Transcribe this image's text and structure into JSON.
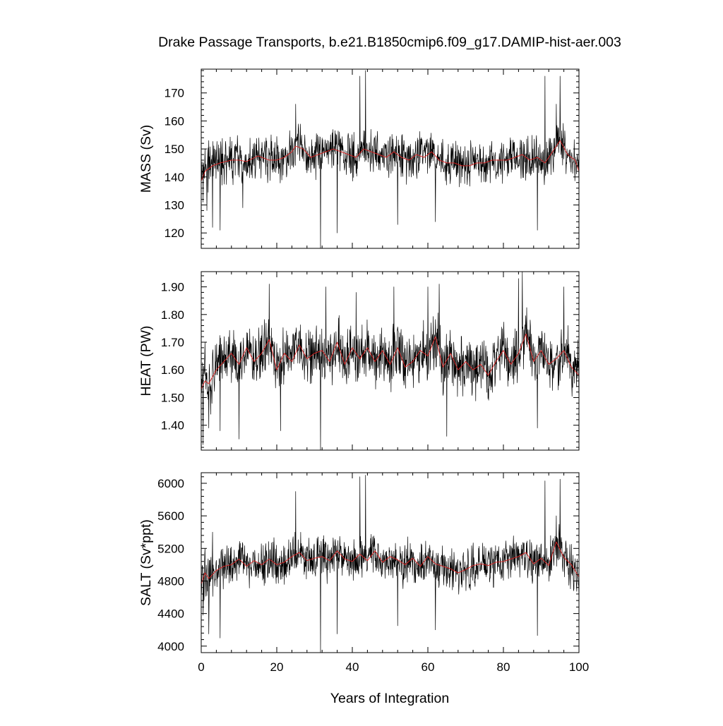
{
  "title": "Drake Passage Transports, b.e21.B1850cmip6.f09_g17.DAMIP-hist-aer.003",
  "xlabel": "Years of Integration",
  "chart_data": [
    {
      "type": "line",
      "ylabel": "MASS (Sv)",
      "xlim": [
        0,
        100
      ],
      "ylim": [
        114.5,
        178.5
      ],
      "yticks": [
        120,
        130,
        140,
        150,
        160,
        170
      ],
      "ytick_labels": [
        "120",
        "130",
        "140",
        "150",
        "160",
        "170"
      ],
      "xticks": [
        0,
        20,
        40,
        60,
        80,
        100
      ],
      "xtick_labels": [],
      "grid": false,
      "series": [
        {
          "key": "monthly",
          "color": "#000000",
          "base": 146,
          "noise": 7.5,
          "x": [
            0,
            0.5,
            1,
            1.5,
            2,
            3,
            5,
            11,
            25,
            31.6,
            36,
            42,
            43.5,
            52,
            62,
            89,
            91,
            94,
            95,
            100
          ],
          "y": [
            143,
            131,
            150,
            128,
            153,
            122,
            121,
            129,
            166,
            114.5,
            120,
            176,
            178,
            123,
            124,
            121,
            176,
            166,
            176,
            135
          ]
        },
        {
          "key": "annual",
          "color": "#e02020",
          "x": [
            0,
            1,
            2,
            3,
            5,
            8,
            10,
            12,
            15,
            18,
            20,
            22,
            24,
            25,
            27,
            29,
            31,
            33,
            35,
            37,
            39,
            41,
            43,
            45,
            47,
            49,
            51,
            53,
            55,
            57,
            59,
            61,
            63,
            65,
            67,
            69,
            71,
            73,
            75,
            77,
            79,
            81,
            83,
            85,
            87,
            89,
            91,
            93,
            95,
            97,
            99,
            100
          ],
          "y": [
            138.5,
            142,
            143,
            144,
            145,
            146,
            146,
            145.5,
            147.5,
            146,
            146,
            147,
            149,
            151,
            150,
            147,
            148,
            149,
            150,
            149,
            148,
            147,
            150,
            149,
            148,
            147,
            149,
            147,
            146,
            148,
            147,
            149,
            146,
            145,
            145,
            144,
            144,
            145,
            145,
            146,
            146,
            146,
            147,
            148,
            146,
            147,
            145,
            149,
            153,
            148,
            146,
            142
          ]
        }
      ]
    },
    {
      "type": "line",
      "ylabel": "HEAT (PW)",
      "xlim": [
        0,
        100
      ],
      "ylim": [
        1.31,
        1.955
      ],
      "yticks": [
        1.4,
        1.5,
        1.6,
        1.7,
        1.8,
        1.9
      ],
      "ytick_labels": [
        "1.40",
        "1.50",
        "1.60",
        "1.70",
        "1.80",
        "1.90"
      ],
      "xticks": [
        0,
        20,
        40,
        60,
        80,
        100
      ],
      "xtick_labels": [],
      "grid": false,
      "series": [
        {
          "key": "monthly",
          "color": "#000000",
          "base": 1.62,
          "noise": 0.1,
          "x": [
            0,
            0.5,
            1,
            2,
            5,
            10,
            18,
            21,
            31.6,
            33,
            41,
            51,
            60,
            63,
            65,
            84,
            85,
            89,
            96,
            100
          ],
          "y": [
            1.52,
            1.33,
            1.7,
            1.39,
            1.38,
            1.35,
            1.91,
            1.38,
            1.31,
            1.9,
            1.88,
            1.9,
            1.9,
            1.91,
            1.36,
            1.93,
            1.955,
            1.39,
            1.9,
            1.45
          ]
        },
        {
          "key": "annual",
          "color": "#e02020",
          "x": [
            0,
            1,
            2,
            4,
            6,
            8,
            10,
            12,
            14,
            16,
            18,
            20,
            22,
            24,
            26,
            28,
            30,
            32,
            34,
            36,
            38,
            40,
            42,
            44,
            46,
            48,
            50,
            52,
            54,
            56,
            58,
            60,
            62,
            64,
            66,
            68,
            70,
            72,
            74,
            76,
            78,
            80,
            82,
            84,
            86,
            88,
            90,
            92,
            94,
            96,
            98,
            100
          ],
          "y": [
            1.53,
            1.56,
            1.55,
            1.6,
            1.63,
            1.66,
            1.62,
            1.68,
            1.63,
            1.66,
            1.71,
            1.6,
            1.66,
            1.63,
            1.69,
            1.64,
            1.66,
            1.67,
            1.63,
            1.7,
            1.62,
            1.68,
            1.64,
            1.68,
            1.63,
            1.67,
            1.62,
            1.68,
            1.61,
            1.63,
            1.67,
            1.65,
            1.72,
            1.61,
            1.66,
            1.6,
            1.63,
            1.6,
            1.62,
            1.58,
            1.63,
            1.67,
            1.62,
            1.66,
            1.73,
            1.63,
            1.67,
            1.62,
            1.64,
            1.67,
            1.61,
            1.58
          ]
        }
      ]
    },
    {
      "type": "line",
      "ylabel": "SALT (Sv*ppt)",
      "xlim": [
        0,
        100
      ],
      "ylim": [
        3920,
        6130
      ],
      "yticks": [
        4000,
        4400,
        4800,
        5200,
        5600,
        6000
      ],
      "ytick_labels": [
        "4000",
        "4400",
        "4800",
        "5200",
        "5600",
        "6000"
      ],
      "xticks": [
        0,
        20,
        40,
        60,
        80,
        100
      ],
      "xtick_labels": [
        "0",
        "20",
        "40",
        "60",
        "80",
        "100"
      ],
      "grid": false,
      "series": [
        {
          "key": "monthly",
          "color": "#000000",
          "base": 5000,
          "noise": 260,
          "x": [
            0,
            0.5,
            1,
            2,
            3,
            5,
            25,
            31.6,
            36,
            42,
            43.5,
            52,
            62,
            89,
            91,
            94,
            95,
            100
          ],
          "y": [
            4880,
            4380,
            5200,
            4150,
            5400,
            4100,
            5900,
            3920,
            4150,
            6080,
            6100,
            4250,
            4200,
            4130,
            6030,
            5600,
            6050,
            4600
          ]
        },
        {
          "key": "annual",
          "color": "#e02020",
          "x": [
            0,
            1,
            2,
            4,
            6,
            8,
            10,
            12,
            14,
            16,
            18,
            20,
            22,
            24,
            26,
            28,
            30,
            32,
            34,
            36,
            38,
            40,
            42,
            44,
            46,
            48,
            50,
            52,
            54,
            56,
            58,
            60,
            62,
            64,
            66,
            68,
            70,
            72,
            74,
            76,
            78,
            80,
            82,
            84,
            86,
            88,
            90,
            92,
            94,
            96,
            98,
            100
          ],
          "y": [
            4760,
            4900,
            4830,
            4930,
            4980,
            5000,
            5070,
            4980,
            5050,
            5000,
            5070,
            5000,
            5030,
            5100,
            5150,
            5050,
            5080,
            5100,
            5050,
            5170,
            5070,
            5040,
            5130,
            5050,
            5170,
            5030,
            5100,
            5060,
            5000,
            5080,
            4980,
            5100,
            5010,
            4980,
            4950,
            4900,
            4940,
            4990,
            5010,
            4990,
            5030,
            5040,
            5070,
            5100,
            5150,
            5010,
            5080,
            4990,
            5280,
            5090,
            5000,
            4850
          ]
        }
      ]
    }
  ]
}
